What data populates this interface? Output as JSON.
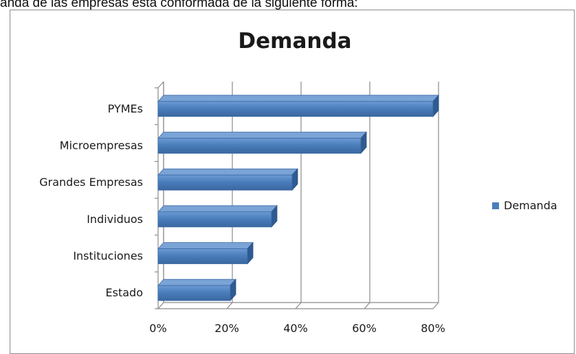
{
  "page": {
    "intro_text": "anda de las empresas está conformada de la siguiente forma:"
  },
  "chart_data": {
    "type": "bar",
    "orientation": "horizontal",
    "title": "Demanda",
    "categories": [
      "PYMEs",
      "Microempresas",
      "Grandes Empresas",
      "Individuos",
      "Instituciones",
      "Estado"
    ],
    "series": [
      {
        "name": "Demanda",
        "values": [
          0.8,
          0.59,
          0.39,
          0.33,
          0.26,
          0.21
        ],
        "color": "#4a7ebb"
      }
    ],
    "xticks": [
      "0%",
      "20%",
      "40%",
      "60%",
      "80%"
    ],
    "xlim": [
      0,
      0.8
    ],
    "grid": true,
    "legend_position": "right",
    "style": "3d"
  }
}
